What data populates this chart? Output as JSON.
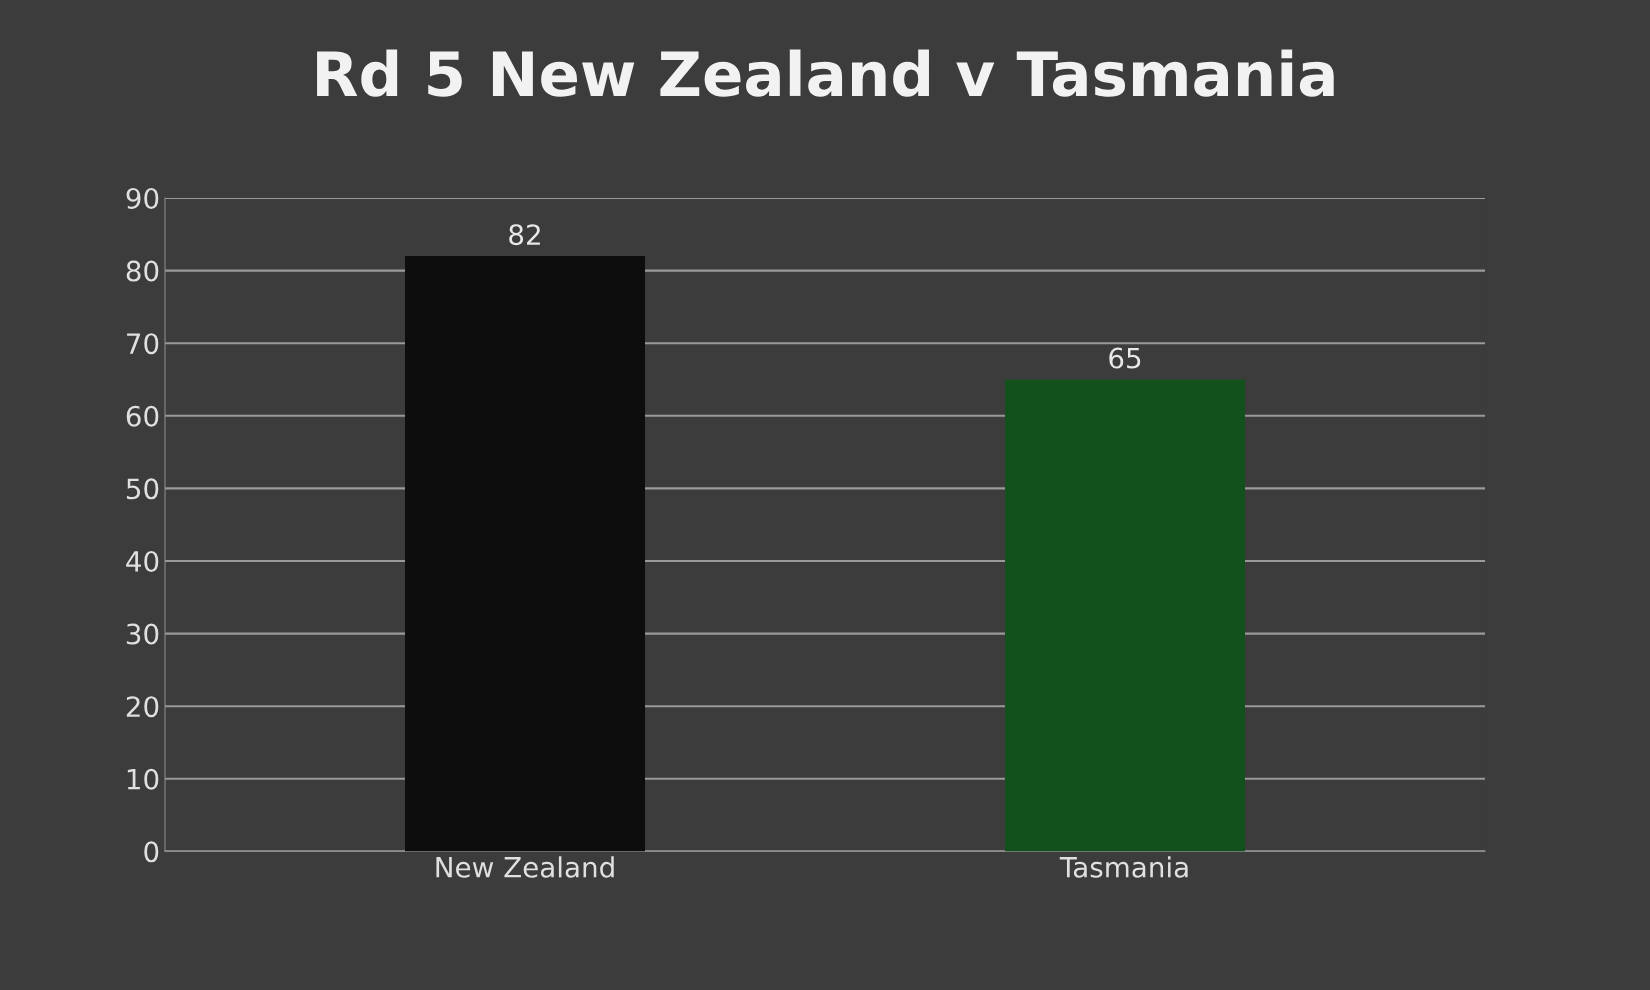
{
  "chart_data": {
    "type": "bar",
    "title": "Rd 5 New Zealand v Tasmania",
    "categories": [
      "New Zealand",
      "Tasmania"
    ],
    "values": [
      82,
      65
    ],
    "colors": [
      "#0d0d0d",
      "#12501c"
    ],
    "ylim": [
      0,
      90
    ],
    "yticks": [
      0,
      10,
      20,
      30,
      40,
      50,
      60,
      70,
      80,
      90
    ],
    "grid": "y",
    "data_labels": true
  }
}
